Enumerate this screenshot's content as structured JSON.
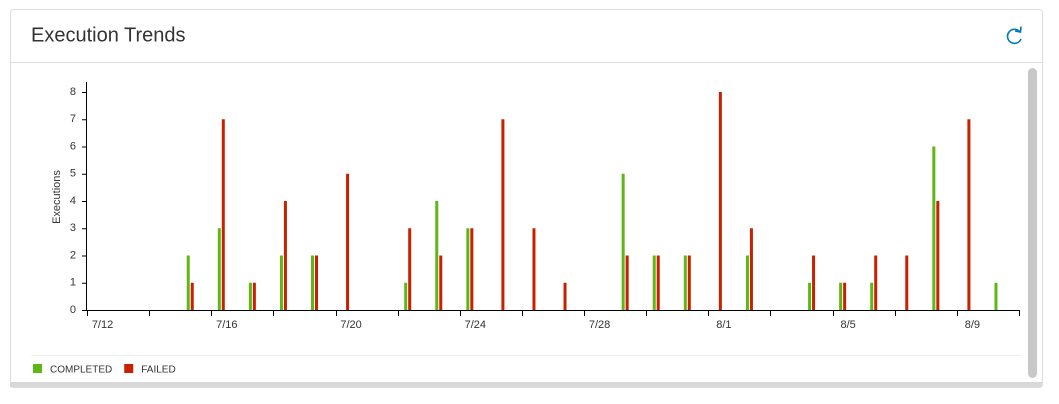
{
  "header": {
    "title": "Execution Trends"
  },
  "chart_data": {
    "type": "bar",
    "y_label": "Executions",
    "categories": [
      "7/12",
      null,
      null,
      null,
      "7/16",
      null,
      null,
      null,
      "7/20",
      null,
      null,
      null,
      "7/24",
      null,
      null,
      null,
      "7/28",
      null,
      null,
      null,
      "8/1",
      null,
      null,
      null,
      "8/5",
      null,
      null,
      null,
      "8/9",
      null
    ],
    "series": [
      {
        "name": "COMPLETED",
        "color": "#5eb715",
        "values": [
          0,
          0,
          0,
          2,
          3,
          1,
          2,
          2,
          0,
          0,
          1,
          4,
          3,
          0,
          0,
          0,
          0,
          5,
          2,
          2,
          0,
          2,
          0,
          1,
          1,
          1,
          0,
          6,
          0,
          1
        ]
      },
      {
        "name": "FAILED",
        "color": "#c92100",
        "values": [
          0,
          0,
          0,
          1,
          7,
          1,
          4,
          2,
          5,
          0,
          3,
          2,
          3,
          7,
          3,
          1,
          0,
          2,
          2,
          2,
          8,
          3,
          0,
          2,
          1,
          2,
          2,
          4,
          7,
          0
        ]
      }
    ],
    "ylim": [
      0,
      8
    ],
    "yticks": [
      0,
      1,
      2,
      3,
      4,
      5,
      6,
      7,
      8
    ],
    "grid": false,
    "legend": "bottom-left"
  }
}
